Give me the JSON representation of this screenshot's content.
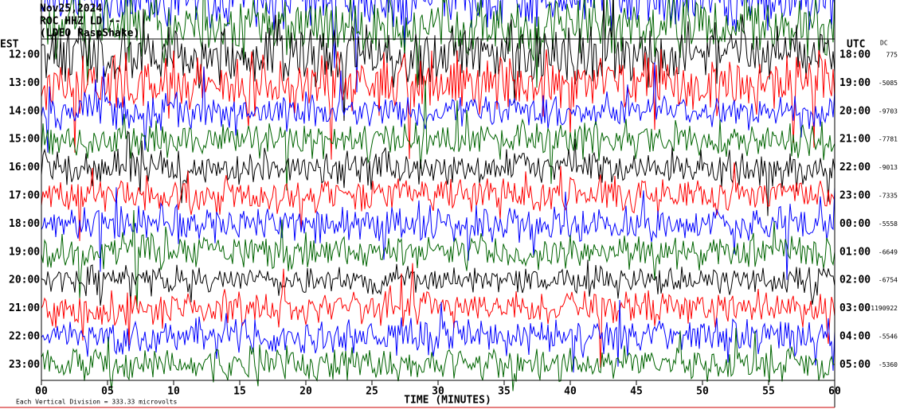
{
  "header": {
    "date": "Nov25,2024",
    "station": "ROC HHZ LD --",
    "source": "(LDEO RaspShake)"
  },
  "left_axis_label": "EST",
  "right_axis_label": "UTC",
  "dc_label": "DC",
  "trace_colors": [
    "#000000",
    "#ff0000",
    "#0000ff",
    "#006400"
  ],
  "rows": [
    {
      "est": "12:00",
      "utc": "18:00",
      "dc": "775"
    },
    {
      "est": "13:00",
      "utc": "19:00",
      "dc": "-5085"
    },
    {
      "est": "14:00",
      "utc": "20:00",
      "dc": "-9703"
    },
    {
      "est": "15:00",
      "utc": "21:00",
      "dc": "-7781"
    },
    {
      "est": "16:00",
      "utc": "22:00",
      "dc": "-9013"
    },
    {
      "est": "17:00",
      "utc": "23:00",
      "dc": "-7335"
    },
    {
      "est": "18:00",
      "utc": "00:00",
      "dc": "-5558"
    },
    {
      "est": "19:00",
      "utc": "01:00",
      "dc": "-6649"
    },
    {
      "est": "20:00",
      "utc": "02:00",
      "dc": "-6754"
    },
    {
      "est": "21:00",
      "utc": "03:00",
      "dc": "-1190922"
    },
    {
      "est": "22:00",
      "utc": "04:00",
      "dc": "-5546"
    },
    {
      "est": "23:00",
      "utc": "05:00",
      "dc": "-5360"
    }
  ],
  "x_ticks": [
    "00",
    "05",
    "10",
    "15",
    "20",
    "25",
    "30",
    "35",
    "40",
    "45",
    "50",
    "55",
    "60"
  ],
  "x_axis_label": "TIME (MINUTES)",
  "footer": "Each Vertical Division = 333.33 microvolts"
}
